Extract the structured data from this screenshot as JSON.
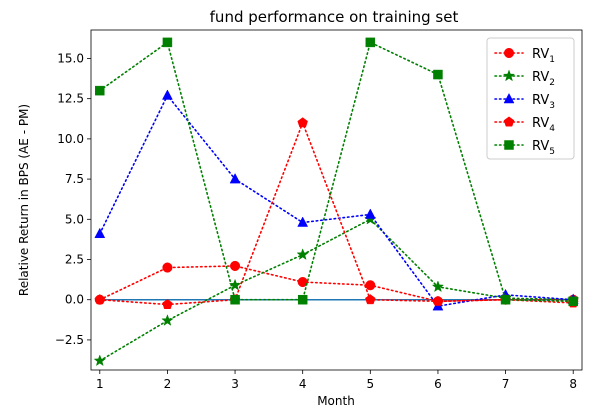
{
  "chart_data": {
    "type": "line",
    "title": "fund performance on training set",
    "xlabel": "Month",
    "ylabel": "Relative Return in BPS (AE - PM)",
    "x": [
      1,
      2,
      3,
      4,
      5,
      6,
      7,
      8
    ],
    "xlim": [
      0.87,
      8.13
    ],
    "ylim": [
      -4.37,
      16.77
    ],
    "xticks": [
      "1",
      "2",
      "3",
      "4",
      "5",
      "6",
      "7",
      "8"
    ],
    "yticks": [
      "−2.5",
      "0.0",
      "2.5",
      "5.0",
      "7.5",
      "10.0",
      "12.5",
      "15.0"
    ],
    "ytick_values": [
      -2.5,
      0,
      2.5,
      5,
      7.5,
      10,
      12.5,
      15
    ],
    "grid": false,
    "legend_position": "top-right",
    "baseline": {
      "value": 0,
      "color": "#1f77b4"
    },
    "series": [
      {
        "name": "RV",
        "sub": "1",
        "color": "#ff0000",
        "marker": "circle",
        "values": [
          0.0,
          2.0,
          2.1,
          1.1,
          0.9,
          -0.1,
          0.0,
          0.0
        ]
      },
      {
        "name": "RV",
        "sub": "2",
        "color": "#008000",
        "marker": "star",
        "values": [
          -3.8,
          -1.3,
          0.9,
          2.8,
          5.0,
          0.8,
          0.1,
          0.0
        ]
      },
      {
        "name": "RV",
        "sub": "3",
        "color": "#0000ff",
        "marker": "triangle",
        "values": [
          4.1,
          12.7,
          7.5,
          4.8,
          5.3,
          -0.4,
          0.3,
          0.0
        ]
      },
      {
        "name": "RV",
        "sub": "4",
        "color": "#ff0000",
        "marker": "pentagon",
        "values": [
          0.0,
          -0.3,
          0.0,
          11.0,
          0.0,
          -0.1,
          0.0,
          -0.2
        ]
      },
      {
        "name": "RV",
        "sub": "5",
        "color": "#008000",
        "marker": "square",
        "values": [
          13.0,
          16.0,
          0.0,
          0.0,
          16.0,
          14.0,
          0.0,
          -0.1
        ]
      }
    ]
  }
}
